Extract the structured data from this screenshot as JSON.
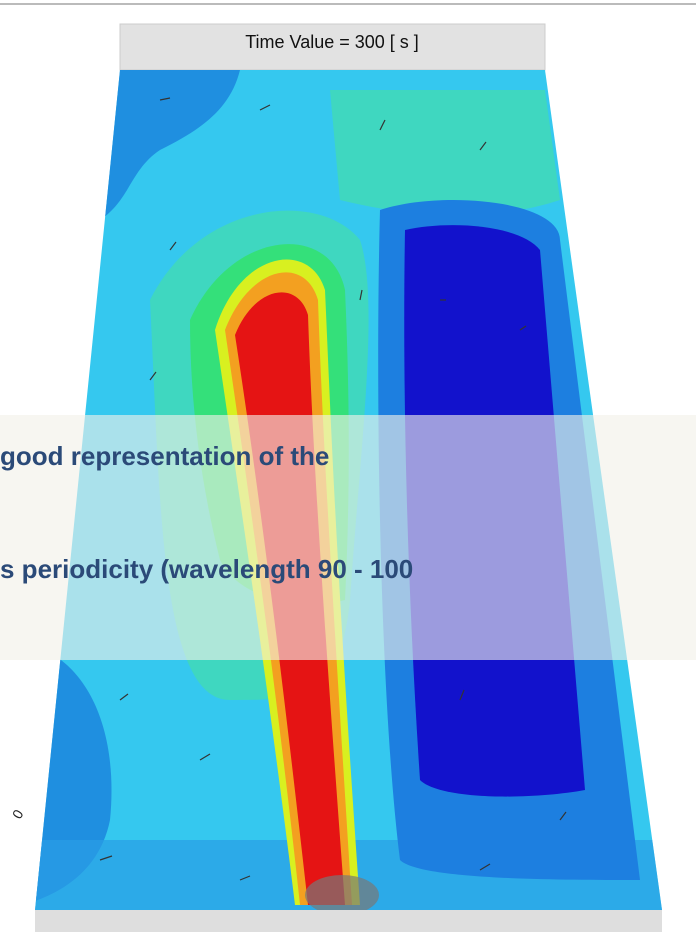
{
  "header": {
    "time_label": "Time Value = 300 [ s ]"
  },
  "overlay": {
    "lines": [
      "good representation of the",
      "s periodicity (wavelength 90 - 100"
    ]
  },
  "side_label": "0"
}
